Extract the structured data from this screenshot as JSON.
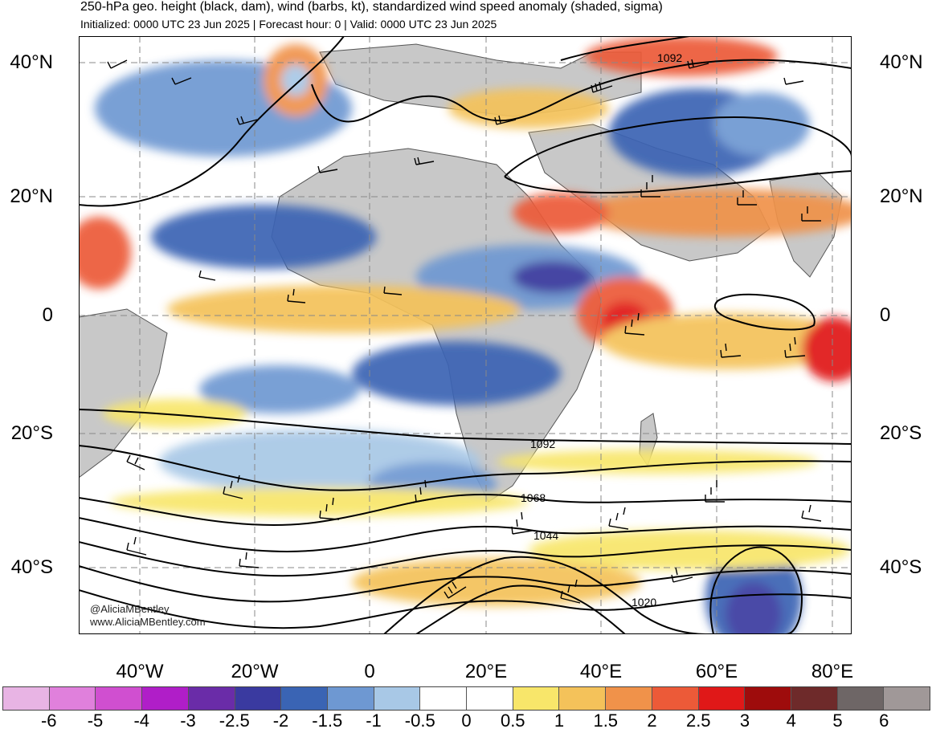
{
  "header": {
    "title": "250-hPa geo. height (black, dam), wind (barbs, kt), standardized wind speed anomaly (shaded, sigma)",
    "subtitle": "Initialized: 0000 UTC 23 Jun 2025 | Forecast hour: 0 | Valid: 0000 UTC 23 Jun 2025"
  },
  "axes": {
    "lat_labels": [
      "40°N",
      "20°N",
      "0",
      "20°S",
      "40°S"
    ],
    "lon_labels": [
      "40°W",
      "20°W",
      "0",
      "20°E",
      "40°E",
      "60°E",
      "80°E"
    ]
  },
  "contour_labels": [
    "1092",
    "1092",
    "1068",
    "1044",
    "1020"
  ],
  "credit": {
    "handle": "@AliciaMBentley",
    "url": "www.AliciaMBentley.com"
  },
  "colorbar": {
    "ticks": [
      "-6",
      "-5",
      "-4",
      "-3",
      "-2.5",
      "-2",
      "-1.5",
      "-1",
      "-0.5",
      "0",
      "0.5",
      "1",
      "1.5",
      "2",
      "2.5",
      "3",
      "4",
      "5",
      "6"
    ],
    "colors": [
      "#e8b4e4",
      "#e080dc",
      "#d04fd0",
      "#b01ec8",
      "#6a2ca8",
      "#3a3aa0",
      "#3a64b4",
      "#6e98d2",
      "#a8c8e6",
      "#ffffff",
      "#ffffff",
      "#f8e66a",
      "#f4c25a",
      "#f0924a",
      "#ec5a38",
      "#e01818",
      "#9e0c0c",
      "#6e2a2a",
      "#6e6666",
      "#a09898"
    ]
  }
}
